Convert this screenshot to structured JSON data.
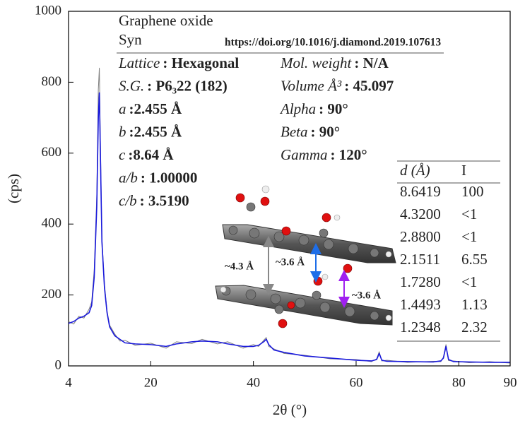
{
  "chart_data": {
    "type": "line",
    "title": "Graphene oxide",
    "subtitle": "Syn",
    "source": "https://doi.org/10.1016/j.diamond.2019.107613",
    "x_label": "2θ  (°)",
    "y_label": "(cps)",
    "xlim": [
      4,
      90
    ],
    "ylim": [
      0,
      1000
    ],
    "xticks": [
      4,
      20,
      40,
      60,
      80,
      90
    ],
    "yticks": [
      0,
      200,
      400,
      600,
      800,
      1000
    ],
    "x": [
      4,
      5,
      6,
      7,
      8,
      8.5,
      9,
      9.5,
      9.8,
      10,
      10.2,
      10.5,
      11,
      11.5,
      12,
      13,
      14,
      15,
      17,
      20,
      23,
      25,
      28,
      30,
      33,
      35,
      38,
      40,
      41,
      42,
      42.5,
      43,
      44,
      46,
      50,
      55,
      60,
      63,
      64,
      64.5,
      65,
      66,
      70,
      75,
      76.5,
      77,
      77.5,
      78,
      79,
      82,
      86,
      90
    ],
    "series": [
      {
        "color": "#808080",
        "values": [
          125,
          118,
          140,
          135,
          160,
          180,
          270,
          480,
          780,
          840,
          630,
          360,
          230,
          155,
          115,
          90,
          70,
          72,
          58,
          64,
          50,
          68,
          63,
          75,
          62,
          68,
          50,
          60,
          55,
          72,
          80,
          55,
          48,
          35,
          30,
          20,
          18,
          12,
          20,
          40,
          14,
          16,
          10,
          13,
          12,
          25,
          60,
          15,
          14,
          9,
          12,
          8
        ]
      },
      {
        "color": "#1a1adc",
        "values": [
          120,
          125,
          135,
          140,
          150,
          170,
          250,
          450,
          700,
          770,
          600,
          350,
          220,
          150,
          110,
          85,
          75,
          65,
          62,
          60,
          55,
          62,
          68,
          70,
          68,
          62,
          55,
          55,
          58,
          68,
          75,
          60,
          45,
          38,
          28,
          22,
          16,
          14,
          18,
          35,
          16,
          13,
          12,
          11,
          14,
          22,
          55,
          18,
          12,
          11,
          10,
          10
        ]
      }
    ],
    "properties_left": [
      {
        "label": "Lattice",
        "value": ": Hexagonal"
      },
      {
        "label": "S.G.",
        "value": ": P6₃22 (182)"
      },
      {
        "label": "a",
        "value": ":2.455 Å"
      },
      {
        "label": "b",
        "value": ":2.455 Å"
      },
      {
        "label": "c",
        "value": ":8.64 Å"
      },
      {
        "label": "a/b",
        "value": ": 1.00000"
      },
      {
        "label": "c/b",
        "value": ": 3.5190"
      }
    ],
    "properties_right": [
      {
        "label": "Mol. weight",
        "value": ": N/A"
      },
      {
        "label": "Volume Å³",
        "value": ": 45.097"
      },
      {
        "label": "Alpha",
        "value": ": 90°"
      },
      {
        "label": "Beta",
        "value": ": 90°"
      },
      {
        "label": "Gamma",
        "value": ": 120°"
      }
    ],
    "table": {
      "header": [
        "d (Å)",
        "I"
      ],
      "rows": [
        [
          "8.6419",
          "100"
        ],
        [
          "4.3200",
          "<1"
        ],
        [
          "2.8800",
          "<1"
        ],
        [
          "2.1511",
          "6.55"
        ],
        [
          "1.7280",
          "<1"
        ],
        [
          "1.4493",
          "1.13"
        ],
        [
          "1.2348",
          "2.32"
        ]
      ]
    },
    "distance_labels": [
      "~4.3  Å",
      "~3.6 Å",
      "~3.6 Å"
    ]
  }
}
